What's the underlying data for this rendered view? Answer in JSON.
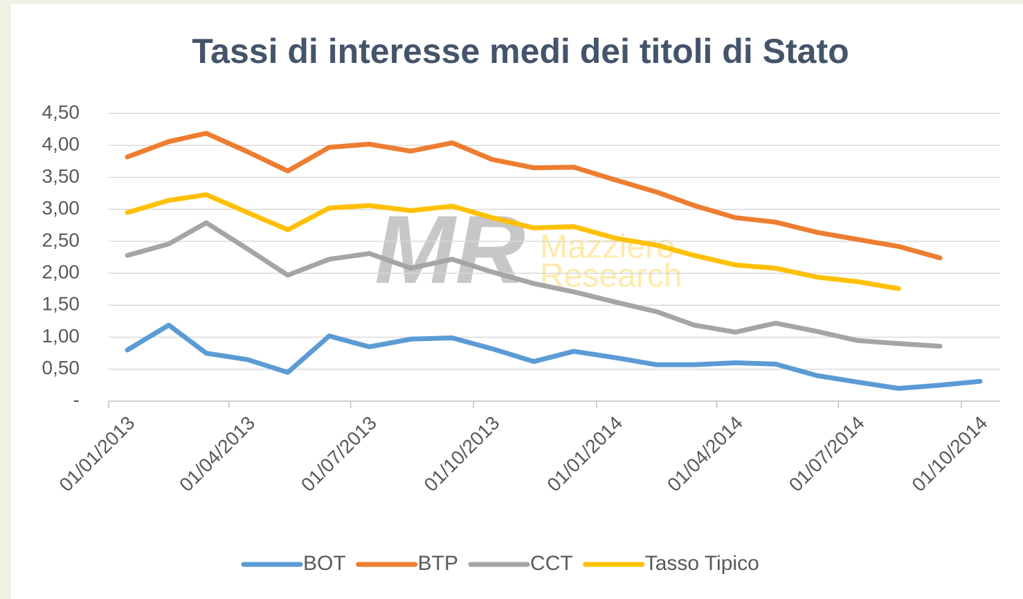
{
  "chart_data": {
    "type": "line",
    "title": "Tassi di interesse medi dei titoli di Stato",
    "watermark": {
      "logo": "MR",
      "lines": [
        "Mazziero",
        "Research"
      ]
    },
    "x": [
      "2013-01-15",
      "2013-02-15",
      "2013-03-15",
      "2013-04-15",
      "2013-05-15",
      "2013-06-15",
      "2013-07-15",
      "2013-08-15",
      "2013-09-15",
      "2013-10-15",
      "2013-11-15",
      "2013-12-15",
      "2014-01-15",
      "2014-02-15",
      "2014-03-15",
      "2014-04-15",
      "2014-05-15",
      "2014-06-15",
      "2014-07-15",
      "2014-08-15",
      "2014-09-15",
      "2014-10-15"
    ],
    "series": [
      {
        "name": "BOT",
        "color": "#5b9bd5",
        "values": [
          0.8,
          1.19,
          0.75,
          0.65,
          0.45,
          1.02,
          0.85,
          0.97,
          0.99,
          0.82,
          0.62,
          0.78,
          0.68,
          0.57,
          0.57,
          0.6,
          0.58,
          0.4,
          0.3,
          0.2,
          0.25,
          0.31
        ]
      },
      {
        "name": "BTP",
        "color": "#ed7d31",
        "values": [
          3.82,
          4.06,
          4.19,
          3.9,
          3.6,
          3.97,
          4.02,
          3.91,
          4.04,
          3.78,
          3.65,
          3.66,
          3.46,
          3.27,
          3.06,
          2.87,
          2.8,
          2.64,
          2.53,
          2.42,
          2.24,
          null
        ]
      },
      {
        "name": "CCT",
        "color": "#a5a5a5",
        "values": [
          2.28,
          2.46,
          2.79,
          2.38,
          1.97,
          2.22,
          2.31,
          2.08,
          2.22,
          2.02,
          1.84,
          1.71,
          1.55,
          1.4,
          1.19,
          1.08,
          1.22,
          1.09,
          0.95,
          0.9,
          0.86,
          null
        ]
      },
      {
        "name": "Tasso Tipico",
        "color": "#ffc000",
        "values": [
          2.95,
          3.14,
          3.23,
          2.95,
          2.68,
          3.02,
          3.06,
          2.98,
          3.05,
          2.87,
          2.71,
          2.73,
          2.55,
          2.44,
          2.28,
          2.13,
          2.08,
          1.94,
          1.87,
          1.76,
          null,
          null
        ]
      }
    ],
    "xlim": [
      "2013-01-01",
      "2014-10-30"
    ],
    "xticks": [
      {
        "value": "2013-01-01",
        "label": "01/01/2013"
      },
      {
        "value": "2013-04-01",
        "label": "01/04/2013"
      },
      {
        "value": "2013-07-01",
        "label": "01/07/2013"
      },
      {
        "value": "2013-10-01",
        "label": "01/10/2013"
      },
      {
        "value": "2014-01-01",
        "label": "01/01/2014"
      },
      {
        "value": "2014-04-01",
        "label": "01/04/2014"
      },
      {
        "value": "2014-07-01",
        "label": "01/07/2014"
      },
      {
        "value": "2014-10-01",
        "label": "01/10/2014"
      }
    ],
    "ylim": [
      0,
      4.5
    ],
    "yticks": [
      {
        "value": 0,
        "label": "-"
      },
      {
        "value": 0.5,
        "label": "0,50"
      },
      {
        "value": 1,
        "label": "1,00"
      },
      {
        "value": 1.5,
        "label": "1,50"
      },
      {
        "value": 2,
        "label": "2,00"
      },
      {
        "value": 2.5,
        "label": "2,50"
      },
      {
        "value": 3,
        "label": "3,00"
      },
      {
        "value": 3.5,
        "label": "3,50"
      },
      {
        "value": 4,
        "label": "4,00"
      },
      {
        "value": 4.5,
        "label": "4,50"
      }
    ],
    "grid": true,
    "legend": "bottom"
  }
}
